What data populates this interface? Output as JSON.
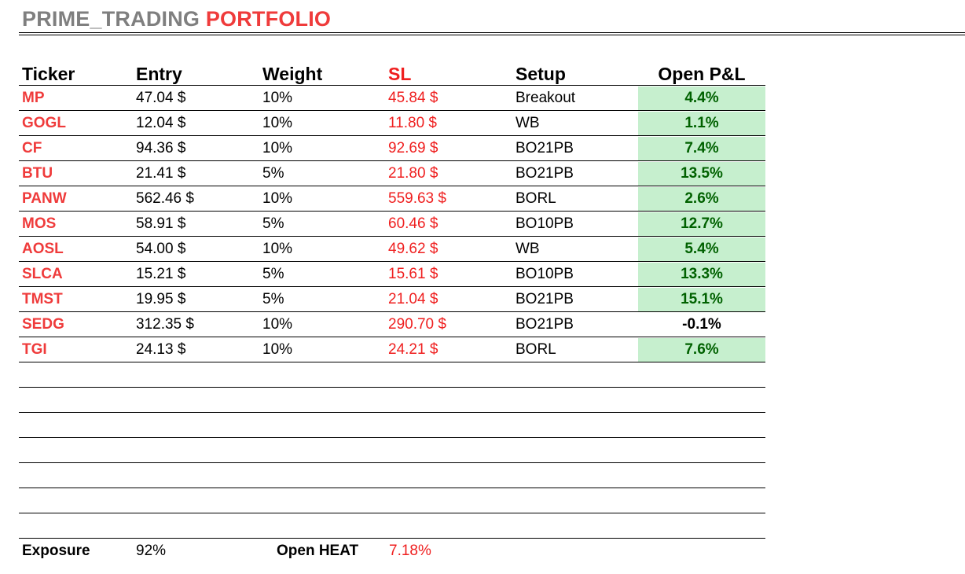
{
  "title": {
    "part1": "PRIME_TRADING",
    "part2": "PORTFOLIO"
  },
  "columns": {
    "ticker": "Ticker",
    "entry": "Entry",
    "weight": "Weight",
    "sl": "SL",
    "setup": "Setup",
    "pnl": "Open P&L"
  },
  "colors": {
    "accent_red": "#ef3b3b",
    "pnl_positive_bg": "#c6efce",
    "pnl_positive_text": "#006100"
  },
  "rows": [
    {
      "ticker": "MP",
      "entry": "47.04 $",
      "weight": "10%",
      "sl": "45.84 $",
      "setup": "Breakout",
      "pnl": "4.4%",
      "pnl_positive": true
    },
    {
      "ticker": "GOGL",
      "entry": "12.04 $",
      "weight": "10%",
      "sl": "11.80 $",
      "setup": "WB",
      "pnl": "1.1%",
      "pnl_positive": true
    },
    {
      "ticker": "CF",
      "entry": "94.36 $",
      "weight": "10%",
      "sl": "92.69 $",
      "setup": "BO21PB",
      "pnl": "7.4%",
      "pnl_positive": true
    },
    {
      "ticker": "BTU",
      "entry": "21.41 $",
      "weight": "5%",
      "sl": "21.80 $",
      "setup": "BO21PB",
      "pnl": "13.5%",
      "pnl_positive": true
    },
    {
      "ticker": "PANW",
      "entry": "562.46 $",
      "weight": "10%",
      "sl": "559.63 $",
      "setup": "BORL",
      "pnl": "2.6%",
      "pnl_positive": true
    },
    {
      "ticker": "MOS",
      "entry": "58.91 $",
      "weight": "5%",
      "sl": "60.46 $",
      "setup": "BO10PB",
      "pnl": "12.7%",
      "pnl_positive": true
    },
    {
      "ticker": "AOSL",
      "entry": "54.00 $",
      "weight": "10%",
      "sl": "49.62 $",
      "setup": "WB",
      "pnl": "5.4%",
      "pnl_positive": true
    },
    {
      "ticker": "SLCA",
      "entry": "15.21 $",
      "weight": "5%",
      "sl": "15.61 $",
      "setup": "BO10PB",
      "pnl": "13.3%",
      "pnl_positive": true
    },
    {
      "ticker": "TMST",
      "entry": "19.95 $",
      "weight": "5%",
      "sl": "21.04 $",
      "setup": "BO21PB",
      "pnl": "15.1%",
      "pnl_positive": true
    },
    {
      "ticker": "SEDG",
      "entry": "312.35 $",
      "weight": "10%",
      "sl": "290.70 $",
      "setup": "BO21PB",
      "pnl": "-0.1%",
      "pnl_positive": false
    },
    {
      "ticker": "TGI",
      "entry": "24.13 $",
      "weight": "10%",
      "sl": "24.21 $",
      "setup": "BORL",
      "pnl": "7.6%",
      "pnl_positive": true
    }
  ],
  "footer": {
    "exposure_label": "Exposure",
    "exposure_value": "92%",
    "heat_label": "Open HEAT",
    "heat_value": "7.18%"
  }
}
